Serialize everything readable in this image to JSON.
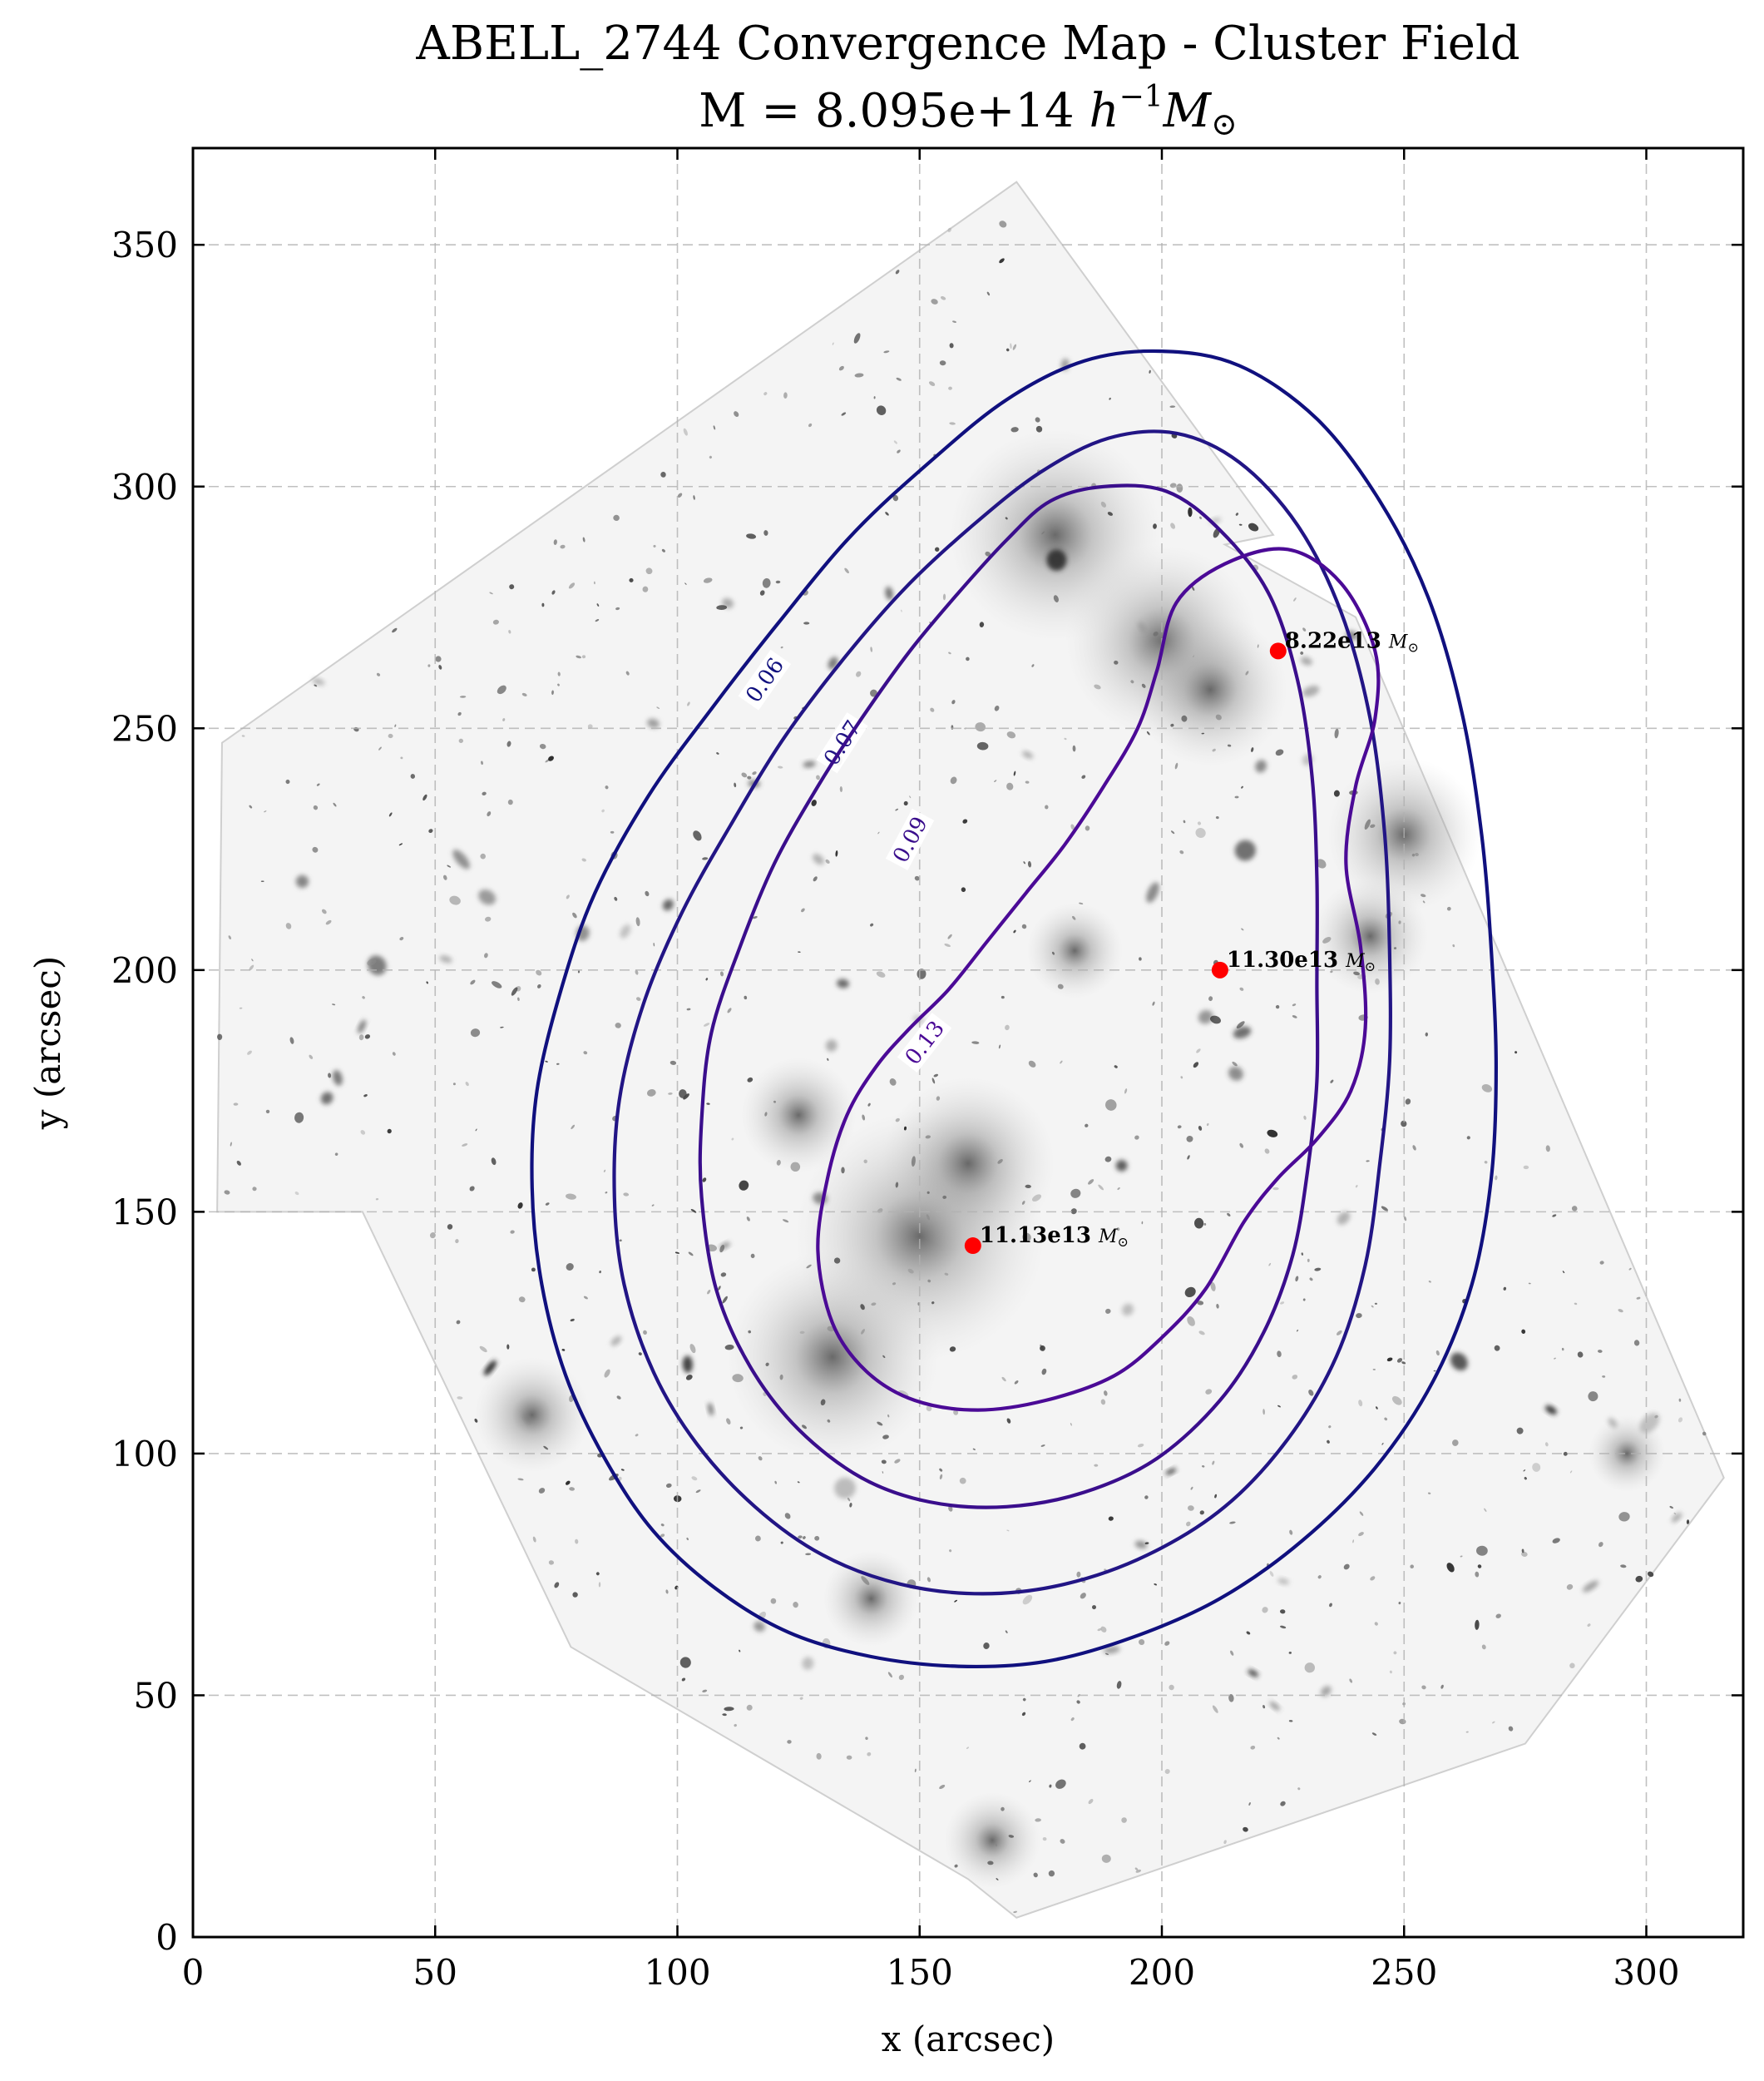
{
  "chart_data": {
    "type": "contour",
    "title_line1": "ABELL_2744 Convergence Map - Cluster Field",
    "title_line2_prefix": "M = 8.095e+14 ",
    "title_line2_unit_h": "h",
    "title_line2_unit_exp": "−1",
    "title_line2_unit_m": "M",
    "title_line2_unit_sub": "⊙",
    "xlabel": "x (arcsec)",
    "ylabel": "y (arcsec)",
    "xlim": [
      0,
      320
    ],
    "ylim": [
      0,
      370
    ],
    "x_ticks": [
      0,
      50,
      100,
      150,
      200,
      250,
      300
    ],
    "y_ticks": [
      0,
      50,
      100,
      150,
      200,
      250,
      300,
      350
    ],
    "grid": true,
    "background": "grayscale HST image of galaxy cluster field (rotated footprint)",
    "contours": [
      {
        "level": "0.06",
        "color": "#10107e",
        "points": [
          [
            70,
            155
          ],
          [
            72,
            135
          ],
          [
            77,
            116
          ],
          [
            85,
            99
          ],
          [
            95,
            84
          ],
          [
            108,
            72
          ],
          [
            123,
            63
          ],
          [
            140,
            58
          ],
          [
            158,
            56
          ],
          [
            176,
            57
          ],
          [
            194,
            62
          ],
          [
            212,
            70
          ],
          [
            229,
            82
          ],
          [
            244,
            97
          ],
          [
            256,
            115
          ],
          [
            264,
            135
          ],
          [
            268,
            157
          ],
          [
            269,
            180
          ],
          [
            268,
            204
          ],
          [
            266,
            228
          ],
          [
            262,
            253
          ],
          [
            255,
            277
          ],
          [
            245,
            297
          ],
          [
            232,
            314
          ],
          [
            216,
            325
          ],
          [
            200,
            328
          ],
          [
            184,
            326
          ],
          [
            168,
            318
          ],
          [
            152,
            305
          ],
          [
            136,
            290
          ],
          [
            121,
            272
          ],
          [
            107,
            254
          ],
          [
            94,
            236
          ],
          [
            83,
            216
          ],
          [
            76,
            196
          ],
          [
            71,
            175
          ]
        ],
        "label_pos": [
          118,
          260
        ],
        "label_angle": -55
      },
      {
        "level": "0.07",
        "color": "#221585",
        "points": [
          [
            87,
            153
          ],
          [
            89,
            135
          ],
          [
            95,
            117
          ],
          [
            104,
            102
          ],
          [
            116,
            89
          ],
          [
            130,
            79
          ],
          [
            146,
            73
          ],
          [
            163,
            71
          ],
          [
            180,
            73
          ],
          [
            197,
            79
          ],
          [
            213,
            89
          ],
          [
            226,
            103
          ],
          [
            236,
            120
          ],
          [
            242,
            139
          ],
          [
            245,
            160
          ],
          [
            247,
            181
          ],
          [
            247,
            204
          ],
          [
            246,
            228
          ],
          [
            243,
            252
          ],
          [
            237,
            274
          ],
          [
            228,
            292
          ],
          [
            216,
            305
          ],
          [
            203,
            311
          ],
          [
            189,
            310
          ],
          [
            175,
            303
          ],
          [
            161,
            292
          ],
          [
            147,
            279
          ],
          [
            134,
            264
          ],
          [
            122,
            248
          ],
          [
            111,
            230
          ],
          [
            101,
            212
          ],
          [
            93,
            193
          ],
          [
            88,
            173
          ]
        ],
        "label_pos": [
          134,
          247
        ],
        "label_angle": -57
      },
      {
        "level": "0.09",
        "color": "#3a0e8c",
        "points": [
          [
            105,
            153
          ],
          [
            108,
            134
          ],
          [
            115,
            118
          ],
          [
            125,
            105
          ],
          [
            138,
            95
          ],
          [
            152,
            90
          ],
          [
            168,
            89
          ],
          [
            184,
            92
          ],
          [
            199,
            99
          ],
          [
            212,
            111
          ],
          [
            221,
            125
          ],
          [
            227,
            141
          ],
          [
            230,
            158
          ],
          [
            232,
            177
          ],
          [
            232,
            197
          ],
          [
            232,
            219
          ],
          [
            231,
            240
          ],
          [
            228,
            260
          ],
          [
            222,
            278
          ],
          [
            212,
            291
          ],
          [
            201,
            299
          ],
          [
            188,
            300
          ],
          [
            177,
            297
          ],
          [
            168,
            289
          ],
          [
            158,
            278
          ],
          [
            148,
            266
          ],
          [
            138,
            252
          ],
          [
            129,
            238
          ],
          [
            120,
            222
          ],
          [
            113,
            205
          ],
          [
            107,
            187
          ],
          [
            105,
            169
          ]
        ],
        "label_pos": [
          148,
          227
        ],
        "label_angle": -62
      },
      {
        "level": "0.13",
        "color": "#4b0a96",
        "points": [
          [
            129,
            142
          ],
          [
            132,
            127
          ],
          [
            139,
            117
          ],
          [
            149,
            111
          ],
          [
            162,
            109
          ],
          [
            176,
            111
          ],
          [
            190,
            116
          ],
          [
            200,
            124
          ],
          [
            209,
            134
          ],
          [
            217,
            148
          ],
          [
            224,
            157
          ],
          [
            232,
            165
          ],
          [
            239,
            175
          ],
          [
            242,
            188
          ],
          [
            241,
            205
          ],
          [
            238,
            222
          ],
          [
            240,
            238
          ],
          [
            244,
            252
          ],
          [
            244,
            266
          ],
          [
            237,
            280
          ],
          [
            226,
            287
          ],
          [
            213,
            284
          ],
          [
            203,
            276
          ],
          [
            199,
            262
          ],
          [
            195,
            250
          ],
          [
            188,
            238
          ],
          [
            180,
            226
          ],
          [
            172,
            216
          ],
          [
            164,
            206
          ],
          [
            156,
            196
          ],
          [
            148,
            188
          ],
          [
            141,
            180
          ],
          [
            135,
            170
          ],
          [
            131,
            157
          ]
        ],
        "label_pos": [
          151,
          185
        ],
        "label_angle": -52
      }
    ],
    "peaks": [
      {
        "x": 224,
        "y": 266,
        "label": "8.22e13 ",
        "unit_m": "M",
        "unit_sub": "⊙",
        "color": "#ff0000"
      },
      {
        "x": 212,
        "y": 200,
        "label": "11.30e13 ",
        "unit_m": "M",
        "unit_sub": "⊙",
        "color": "#ff0000"
      },
      {
        "x": 161,
        "y": 143,
        "label": "11.13e13 ",
        "unit_m": "M",
        "unit_sub": "⊙",
        "color": "#ff0000"
      }
    ]
  }
}
